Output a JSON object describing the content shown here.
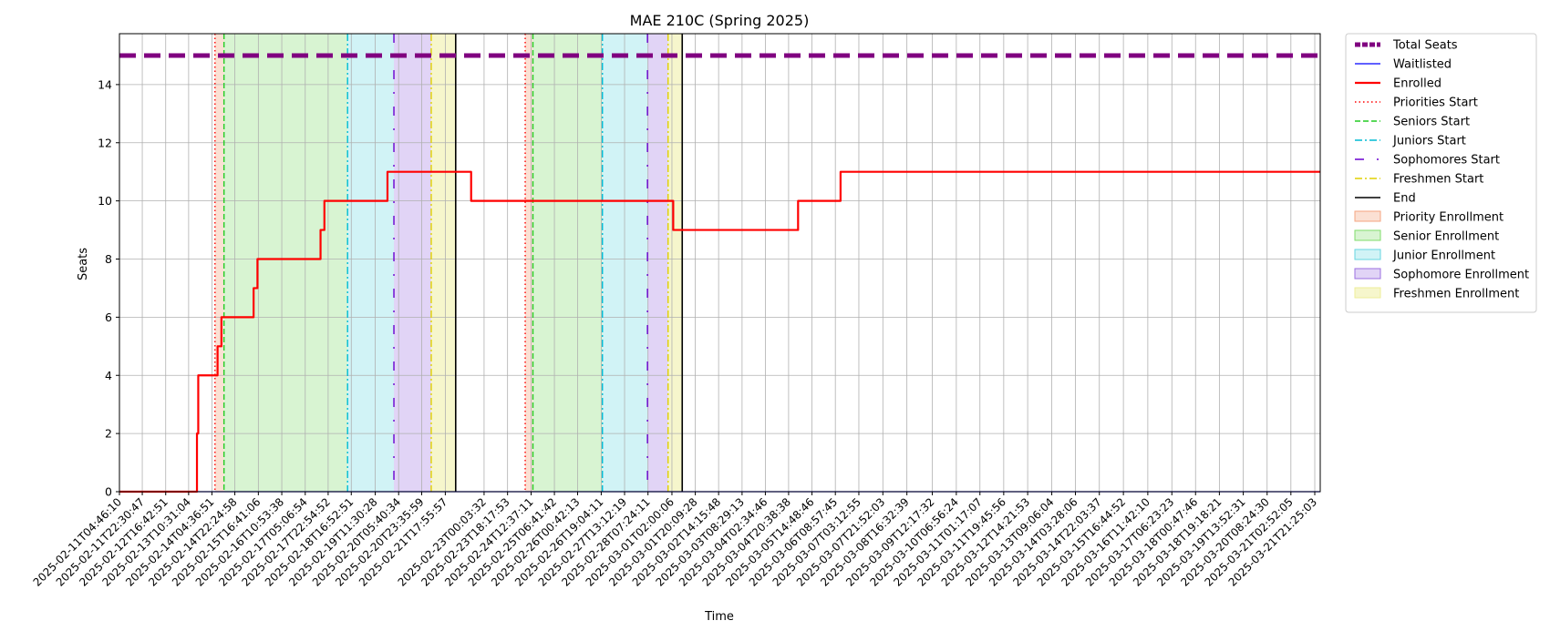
{
  "chart_data": {
    "type": "line",
    "title": "MAE 210C (Spring 2025)",
    "xlabel": "Time",
    "ylabel": "Seats",
    "ylim": [
      0,
      15.75
    ],
    "xlim": [
      "2025-02-11T04:46:10",
      "2025-03-22T01:40:00"
    ],
    "grid": true,
    "legend_placement": "outside-right",
    "yticks": [
      0,
      2,
      4,
      6,
      8,
      10,
      12,
      14
    ],
    "xticks": [
      "2025-02-11T04:46:10",
      "2025-02-11T22:30:47",
      "2025-02-12T16:42:51",
      "2025-02-13T10:31:04",
      "2025-02-14T04:36:51",
      "2025-02-14T22:24:58",
      "2025-02-15T16:41:06",
      "2025-02-16T10:53:38",
      "2025-02-17T05:06:54",
      "2025-02-17T22:54:52",
      "2025-02-18T16:52:51",
      "2025-02-19T11:30:28",
      "2025-02-20T05:40:34",
      "2025-02-20T23:35:59",
      "2025-02-21T17:55:57",
      "2025-02-23T00:03:32",
      "2025-02-23T18:17:53",
      "2025-02-24T12:37:11",
      "2025-02-25T06:41:42",
      "2025-02-26T00:42:13",
      "2025-02-26T19:04:11",
      "2025-02-27T13:12:19",
      "2025-02-28T07:24:11",
      "2025-03-01T02:00:06",
      "2025-03-01T20:09:28",
      "2025-03-02T14:15:48",
      "2025-03-03T08:29:13",
      "2025-03-04T02:34:46",
      "2025-03-04T20:38:38",
      "2025-03-05T14:48:46",
      "2025-03-06T08:57:45",
      "2025-03-07T03:12:55",
      "2025-03-07T21:52:03",
      "2025-03-08T16:32:39",
      "2025-03-09T12:17:32",
      "2025-03-10T06:56:24",
      "2025-03-11T01:17:07",
      "2025-03-11T19:45:56",
      "2025-03-12T14:21:53",
      "2025-03-13T09:06:04",
      "2025-03-14T03:28:06",
      "2025-03-14T22:03:37",
      "2025-03-15T16:44:52",
      "2025-03-16T11:42:10",
      "2025-03-17T06:23:23",
      "2025-03-18T00:47:46",
      "2025-03-18T19:18:21",
      "2025-03-19T13:52:31",
      "2025-03-20T08:24:30",
      "2025-03-21T02:52:05",
      "2025-03-21T21:25:03"
    ],
    "series": [
      {
        "name": "Total Seats",
        "color": "#800080",
        "style": "dashed",
        "width": 5,
        "x": [
          "2025-02-11T04:46:10",
          "2025-03-22T01:40:00"
        ],
        "y": [
          15,
          15
        ]
      },
      {
        "name": "Waitlisted",
        "color": "#0000ff",
        "style": "solid",
        "width": 1.2,
        "x": [
          "2025-02-11T04:46:10",
          "2025-03-22T01:40:00"
        ],
        "y": [
          0,
          0
        ]
      },
      {
        "name": "Enrolled",
        "color": "#ff0000",
        "style": "solid",
        "width": 2.2,
        "x": [
          "2025-02-11T04:46:10",
          "2025-02-13T17:00:00",
          "2025-02-13T17:00:00",
          "2025-02-13T18:00:00",
          "2025-02-13T18:00:00",
          "2025-02-13T20:30:00",
          "2025-02-14T09:00:00",
          "2025-02-14T09:00:00",
          "2025-02-14T12:00:00",
          "2025-02-14T12:00:00",
          "2025-02-15T13:00:00",
          "2025-02-15T13:00:00",
          "2025-02-15T16:00:00",
          "2025-02-15T16:00:00",
          "2025-02-17T17:00:00",
          "2025-02-17T17:00:00",
          "2025-02-17T20:00:00",
          "2025-02-17T20:00:00",
          "2025-02-19T21:00:00",
          "2025-02-19T21:00:00",
          "2025-02-22T14:00:00",
          "2025-02-22T14:00:00",
          "2025-03-01T03:00:00",
          "2025-03-01T03:00:00",
          "2025-03-05T04:00:00",
          "2025-03-05T04:00:00",
          "2025-03-06T13:00:00",
          "2025-03-06T13:00:00",
          "2025-03-22T01:40:00"
        ],
        "y": [
          0,
          0,
          2,
          2,
          4,
          4,
          4,
          5,
          5,
          6,
          6,
          7,
          7,
          8,
          8,
          9,
          9,
          10,
          10,
          11,
          11,
          10,
          10,
          9,
          9,
          10,
          10,
          11,
          11
        ]
      }
    ],
    "vertical_lines": [
      {
        "name": "Priorities Start",
        "color": "#ff0000",
        "style": "dotted",
        "x": [
          "2025-02-14T07:00:00",
          "2025-02-24T08:00:00"
        ]
      },
      {
        "name": "Seniors Start",
        "color": "#22cc22",
        "style": "dashed",
        "x": [
          "2025-02-14T14:00:00",
          "2025-02-24T14:00:00"
        ]
      },
      {
        "name": "Juniors Start",
        "color": "#00bcd4",
        "style": "dashdot",
        "x": [
          "2025-02-18T14:00:00",
          "2025-02-26T20:00:00"
        ]
      },
      {
        "name": "Sophomores Start",
        "color": "#6a00d0",
        "style": "dashdot-sparse",
        "x": [
          "2025-02-20T02:00:00",
          "2025-02-28T07:00:00"
        ]
      },
      {
        "name": "Freshmen Start",
        "color": "#e0d000",
        "style": "dashdot",
        "x": [
          "2025-02-21T07:00:00",
          "2025-02-28T23:00:00"
        ]
      },
      {
        "name": "End",
        "color": "#000000",
        "style": "solid",
        "x": [
          "2025-02-22T02:00:00",
          "2025-03-01T10:00:00"
        ]
      }
    ],
    "spans": [
      {
        "name": "Priority Enrollment",
        "color": "#f4a582",
        "alpha": 0.35,
        "ranges": [
          [
            "2025-02-14T07:00:00",
            "2025-02-14T14:00:00"
          ],
          [
            "2025-02-24T08:00:00",
            "2025-02-24T14:00:00"
          ]
        ]
      },
      {
        "name": "Senior Enrollment",
        "color": "#7fdc6b",
        "alpha": 0.3,
        "ranges": [
          [
            "2025-02-14T14:00:00",
            "2025-02-18T14:00:00"
          ],
          [
            "2025-02-24T14:00:00",
            "2025-02-26T20:00:00"
          ]
        ]
      },
      {
        "name": "Junior Enrollment",
        "color": "#66d6e0",
        "alpha": 0.3,
        "ranges": [
          [
            "2025-02-18T14:00:00",
            "2025-02-20T02:00:00"
          ],
          [
            "2025-02-26T20:00:00",
            "2025-02-28T07:00:00"
          ]
        ]
      },
      {
        "name": "Sophomore Enrollment",
        "color": "#9b6fe0",
        "alpha": 0.3,
        "ranges": [
          [
            "2025-02-20T02:00:00",
            "2025-02-21T07:00:00"
          ],
          [
            "2025-02-28T07:00:00",
            "2025-02-28T23:00:00"
          ]
        ]
      },
      {
        "name": "Freshmen Enrollment",
        "color": "#eeee99",
        "alpha": 0.5,
        "ranges": [
          [
            "2025-02-21T07:00:00",
            "2025-02-22T02:00:00"
          ],
          [
            "2025-02-28T23:00:00",
            "2025-03-01T10:00:00"
          ]
        ]
      }
    ],
    "legend": [
      {
        "label": "Total Seats",
        "kind": "line",
        "color": "#800080",
        "style": "dashed",
        "width": 5
      },
      {
        "label": "Waitlisted",
        "kind": "line",
        "color": "#0000ff",
        "style": "solid",
        "width": 1.2
      },
      {
        "label": "Enrolled",
        "kind": "line",
        "color": "#ff0000",
        "style": "solid",
        "width": 2.2
      },
      {
        "label": "Priorities Start",
        "kind": "line",
        "color": "#ff0000",
        "style": "dotted",
        "width": 1.5
      },
      {
        "label": "Seniors Start",
        "kind": "line",
        "color": "#22cc22",
        "style": "dashed",
        "width": 1.5
      },
      {
        "label": "Juniors Start",
        "kind": "line",
        "color": "#00bcd4",
        "style": "dashdot",
        "width": 1.5
      },
      {
        "label": "Sophomores Start",
        "kind": "line",
        "color": "#6a00d0",
        "style": "dashdot-sparse",
        "width": 1.5
      },
      {
        "label": "Freshmen Start",
        "kind": "line",
        "color": "#e0d000",
        "style": "dashdot",
        "width": 1.5
      },
      {
        "label": "End",
        "kind": "line",
        "color": "#000000",
        "style": "solid",
        "width": 1.5
      },
      {
        "label": "Priority Enrollment",
        "kind": "patch",
        "color": "#f4a582",
        "alpha": 0.35
      },
      {
        "label": "Senior Enrollment",
        "kind": "patch",
        "color": "#7fdc6b",
        "alpha": 0.3
      },
      {
        "label": "Junior Enrollment",
        "kind": "patch",
        "color": "#66d6e0",
        "alpha": 0.3
      },
      {
        "label": "Sophomore Enrollment",
        "kind": "patch",
        "color": "#9b6fe0",
        "alpha": 0.3
      },
      {
        "label": "Freshmen Enrollment",
        "kind": "patch",
        "color": "#eeee99",
        "alpha": 0.5
      }
    ]
  }
}
